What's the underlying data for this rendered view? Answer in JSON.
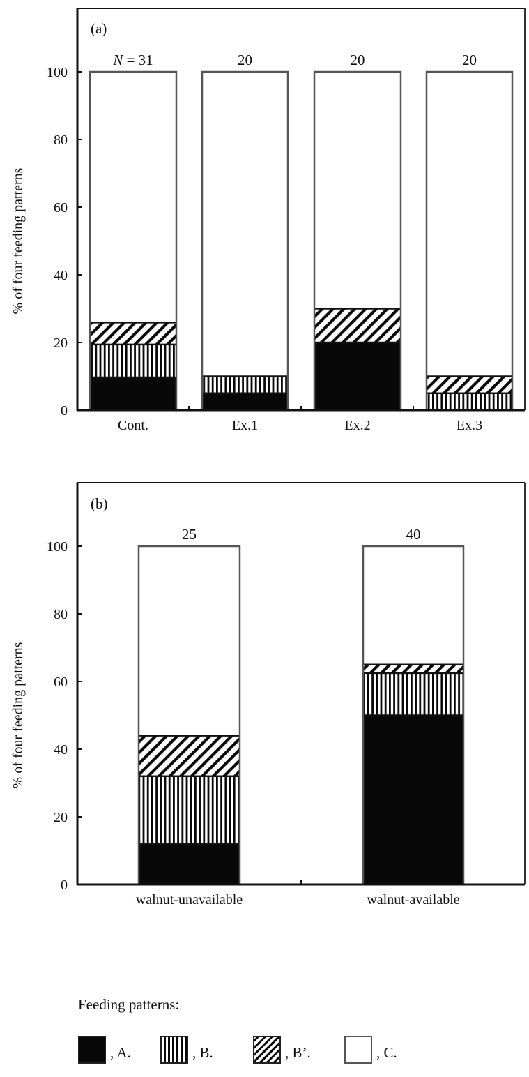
{
  "chart_data": [
    {
      "type": "bar",
      "stacked": true,
      "panel_label": "(a)",
      "title": "",
      "xlabel": "",
      "ylabel": "% of four feeding patterns",
      "ylim": [
        0,
        100
      ],
      "yticks": [
        0,
        20,
        40,
        60,
        80,
        100
      ],
      "grid": false,
      "categories": [
        "Cont.",
        "Ex.1",
        "Ex.2",
        "Ex.3"
      ],
      "n_labels": [
        "N = 31",
        "20",
        "20",
        "20"
      ],
      "series": [
        {
          "name": "A",
          "pattern": "solid",
          "values": [
            9.7,
            5,
            20,
            0
          ]
        },
        {
          "name": "B",
          "pattern": "vertical",
          "values": [
            9.7,
            5,
            0,
            5
          ]
        },
        {
          "name": "B'",
          "pattern": "diagonal",
          "values": [
            6.5,
            0,
            10,
            5
          ]
        },
        {
          "name": "C",
          "pattern": "blank",
          "values": [
            74.2,
            90,
            70,
            90
          ]
        }
      ]
    },
    {
      "type": "bar",
      "stacked": true,
      "panel_label": "(b)",
      "title": "",
      "xlabel": "",
      "ylabel": "% of four feeding patterns",
      "ylim": [
        0,
        100
      ],
      "yticks": [
        0,
        20,
        40,
        60,
        80,
        100
      ],
      "grid": false,
      "categories": [
        "walnut-unavailable",
        "walnut-available"
      ],
      "n_labels": [
        "25",
        "40"
      ],
      "series": [
        {
          "name": "A",
          "pattern": "solid",
          "values": [
            12,
            50
          ]
        },
        {
          "name": "B",
          "pattern": "vertical",
          "values": [
            20,
            12.5
          ]
        },
        {
          "name": "B'",
          "pattern": "diagonal",
          "values": [
            12,
            2.5
          ]
        },
        {
          "name": "C",
          "pattern": "blank",
          "values": [
            56,
            35
          ]
        }
      ]
    }
  ],
  "legend": {
    "title": "Feeding patterns:",
    "items": [
      {
        "key": "A",
        "label": ", A."
      },
      {
        "key": "B",
        "label": ", B."
      },
      {
        "key": "Bp",
        "label": ", B’."
      },
      {
        "key": "C",
        "label": ", C."
      }
    ]
  },
  "colors": {
    "fill_dark": "#080808",
    "bar_outline": "#555555",
    "axis": "#111111"
  }
}
